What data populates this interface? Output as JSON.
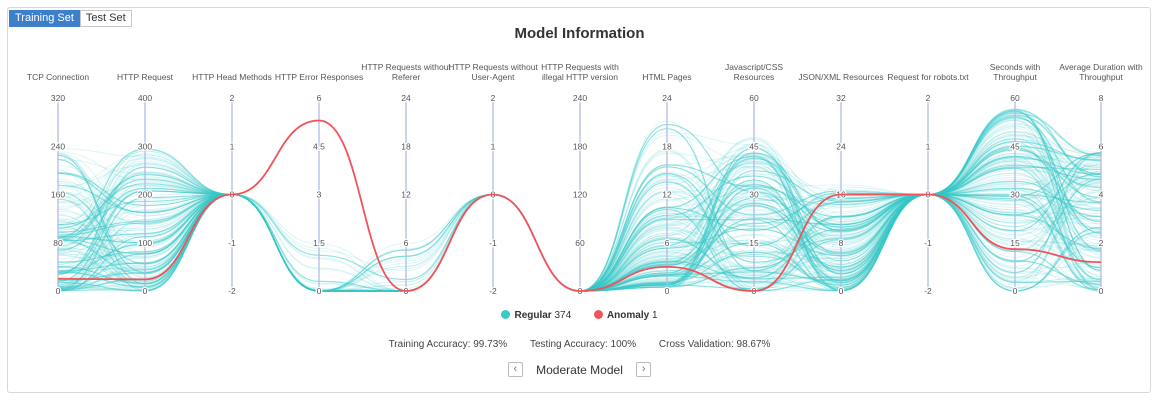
{
  "tabs": {
    "training": "Training Set",
    "test": "Test Set"
  },
  "colors": {
    "regular": "#3ac8c8",
    "anomaly": "#f0545a",
    "tab_active": "#3c7fcb"
  },
  "legend": {
    "regular_label": "Regular",
    "regular_count": "374",
    "anomaly_label": "Anomaly",
    "anomaly_count": "1"
  },
  "stats": {
    "training": "Training Accuracy: 99.73%",
    "testing": "Testing Accuracy: 100%",
    "cross": "Cross Validation: 98.67%"
  },
  "nav": {
    "model_label": "Moderate Model",
    "prev_icon": "chevron-left-icon",
    "next_icon": "chevron-right-icon"
  },
  "chart_data": {
    "type": "parallel-coordinates",
    "title": "Model Information",
    "axes": [
      {
        "label": "TCP Connection",
        "range": [
          0,
          320
        ],
        "ticks": [
          "320",
          "240",
          "160",
          "80",
          "0"
        ]
      },
      {
        "label": "HTTP Request",
        "range": [
          0,
          400
        ],
        "ticks": [
          "400",
          "300",
          "200",
          "100",
          "0"
        ]
      },
      {
        "label": "HTTP Head Methods",
        "range": [
          -2,
          2
        ],
        "ticks": [
          "2",
          "1",
          "0",
          "-1",
          "-2"
        ]
      },
      {
        "label": "HTTP Error Responses",
        "range": [
          0,
          6
        ],
        "ticks": [
          "6",
          "4.5",
          "3",
          "1.5",
          "0"
        ]
      },
      {
        "label": "HTTP Requests without Referer",
        "range": [
          0,
          24
        ],
        "ticks": [
          "24",
          "18",
          "12",
          "6",
          "0"
        ]
      },
      {
        "label": "HTTP Requests without User-Agent",
        "range": [
          -2,
          2
        ],
        "ticks": [
          "2",
          "1",
          "0",
          "-1",
          "-2"
        ]
      },
      {
        "label": "HTTP Requests with illegal HTTP version",
        "range": [
          0,
          240
        ],
        "ticks": [
          "240",
          "180",
          "120",
          "60",
          "0"
        ]
      },
      {
        "label": "HTML Pages",
        "range": [
          0,
          24
        ],
        "ticks": [
          "24",
          "18",
          "12",
          "6",
          "0"
        ]
      },
      {
        "label": "Javascript/CSS Resources",
        "range": [
          0,
          60
        ],
        "ticks": [
          "60",
          "45",
          "30",
          "15",
          "0"
        ]
      },
      {
        "label": "JSON/XML Resources",
        "range": [
          0,
          32
        ],
        "ticks": [
          "32",
          "24",
          "16",
          "8",
          "0"
        ]
      },
      {
        "label": "Request for robots.txt",
        "range": [
          -2,
          2
        ],
        "ticks": [
          "2",
          "1",
          "0",
          "-1",
          "-2"
        ]
      },
      {
        "label": "Seconds with Throughput",
        "range": [
          0,
          60
        ],
        "ticks": [
          "60",
          "45",
          "30",
          "15",
          "0"
        ]
      },
      {
        "label": "Average Duration with Throughput",
        "range": [
          0,
          8
        ],
        "ticks": [
          "8",
          "6",
          "4",
          "2",
          "0"
        ]
      }
    ],
    "series": [
      {
        "name": "Regular",
        "count": 374
      },
      {
        "name": "Anomaly",
        "count": 1,
        "values": [
          20,
          24,
          0,
          5.3,
          0,
          0,
          0,
          3,
          0,
          16,
          0,
          13,
          1.2
        ]
      }
    ],
    "legend_position": "bottom",
    "grid": false
  }
}
